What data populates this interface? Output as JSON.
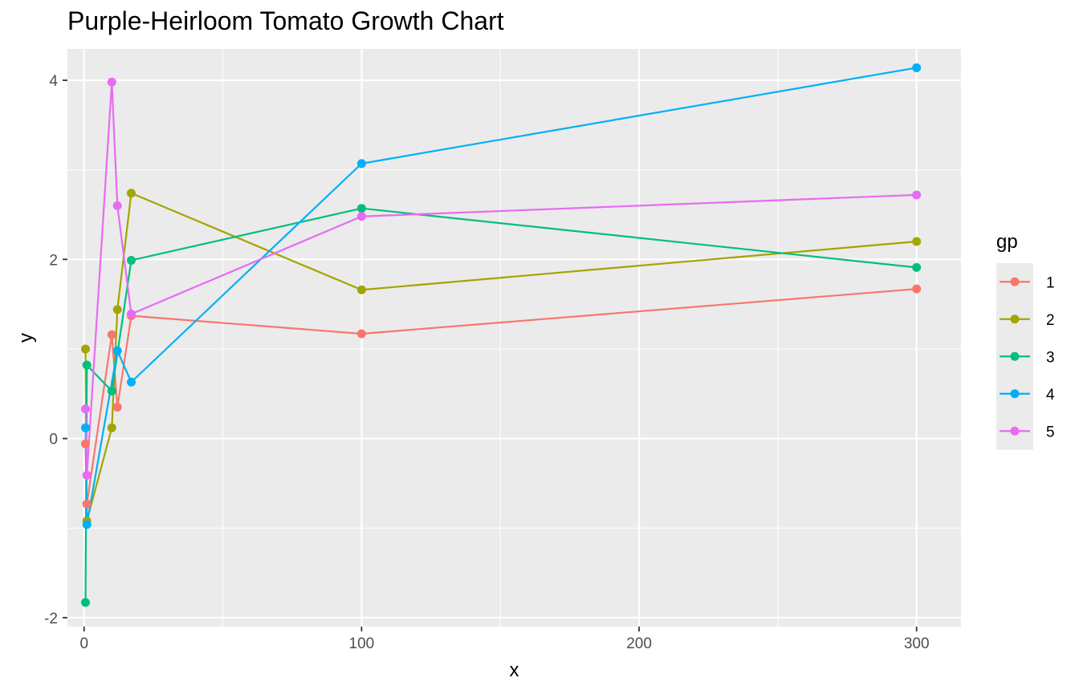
{
  "chart_data": {
    "type": "line",
    "title": "Purple-Heirloom Tomato Growth Chart",
    "xlabel": "x",
    "ylabel": "y",
    "xlim": [
      -6,
      316
    ],
    "ylim": [
      -2.1,
      4.35
    ],
    "x_ticks": [
      0,
      100,
      200,
      300
    ],
    "x_tick_labels": [
      "0",
      "100",
      "200",
      "300"
    ],
    "y_ticks": [
      -2,
      0,
      2,
      4
    ],
    "y_tick_labels": [
      "-2",
      "0",
      "2",
      "4"
    ],
    "grid": true,
    "legend": {
      "title": "gp",
      "placement": "right"
    },
    "series": [
      {
        "name": "1",
        "color": "#F8766D",
        "points": [
          [
            0.5,
            -0.06
          ],
          [
            1,
            -0.73
          ],
          [
            10,
            1.16
          ],
          [
            12,
            0.35
          ],
          [
            17,
            1.37
          ],
          [
            100,
            1.17
          ],
          [
            300,
            1.67
          ]
        ]
      },
      {
        "name": "2",
        "color": "#A3A500",
        "points": [
          [
            0.5,
            1.0
          ],
          [
            1,
            -0.92
          ],
          [
            10,
            0.12
          ],
          [
            12,
            1.44
          ],
          [
            17,
            2.74
          ],
          [
            100,
            1.66
          ],
          [
            300,
            2.2
          ]
        ]
      },
      {
        "name": "3",
        "color": "#00BF7D",
        "points": [
          [
            0.5,
            -1.83
          ],
          [
            1,
            0.82
          ],
          [
            10,
            0.53
          ],
          [
            17,
            1.99
          ],
          [
            100,
            2.57
          ],
          [
            300,
            1.91
          ]
        ]
      },
      {
        "name": "4",
        "color": "#00B0F6",
        "points": [
          [
            0.5,
            0.12
          ],
          [
            1,
            -0.96
          ],
          [
            12,
            0.98
          ],
          [
            17,
            0.63
          ],
          [
            100,
            3.07
          ],
          [
            300,
            4.14
          ]
        ]
      },
      {
        "name": "5",
        "color": "#E76BF3",
        "points": [
          [
            0.5,
            0.33
          ],
          [
            1,
            -0.41
          ],
          [
            10,
            3.98
          ],
          [
            12,
            2.6
          ],
          [
            17,
            1.39
          ],
          [
            100,
            2.48
          ],
          [
            300,
            2.72
          ]
        ]
      }
    ]
  }
}
